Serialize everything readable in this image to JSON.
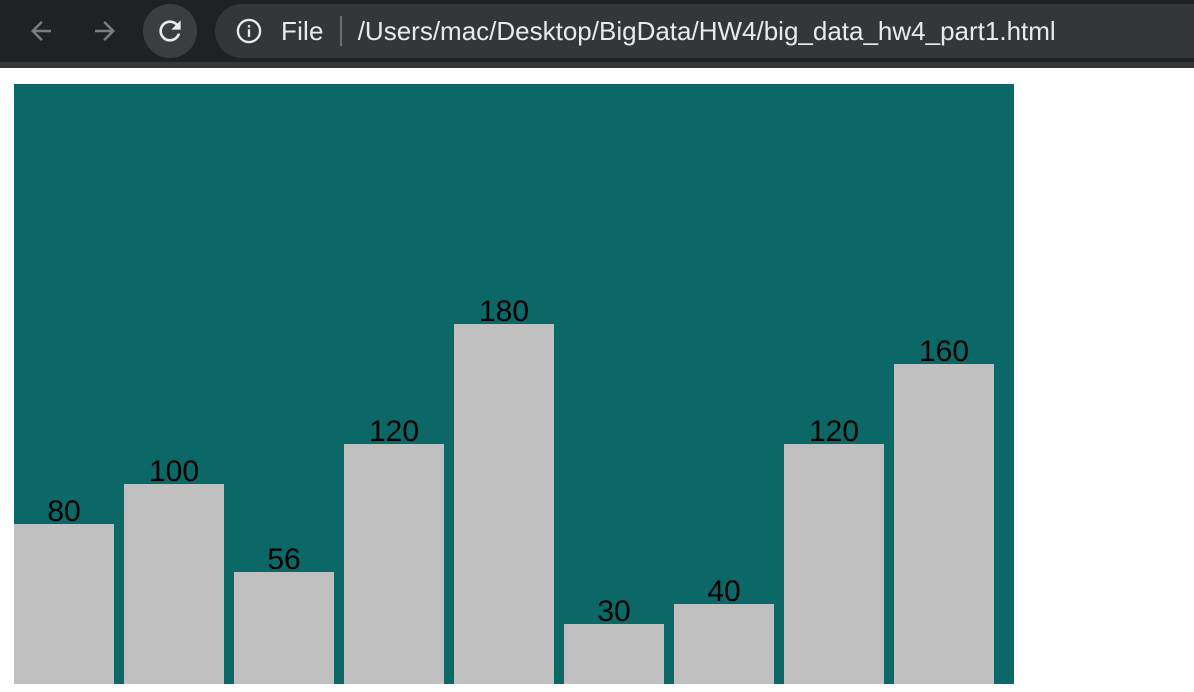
{
  "browser": {
    "scheme_label": "File",
    "url": "/Users/mac/Desktop/BigData/HW4/big_data_hw4_part1.html",
    "icons": {
      "back": "arrow-left-icon",
      "forward": "arrow-right-icon",
      "reload": "reload-icon",
      "info": "info-icon"
    }
  },
  "chart_data": {
    "type": "bar",
    "values": [
      80,
      100,
      56,
      120,
      180,
      30,
      40,
      120,
      160
    ],
    "ylim": [
      0,
      300
    ],
    "grid": false,
    "legend": "none",
    "background_color": "#0b6866",
    "bar_color": "#c0c0c0",
    "label_color": "#000000"
  }
}
